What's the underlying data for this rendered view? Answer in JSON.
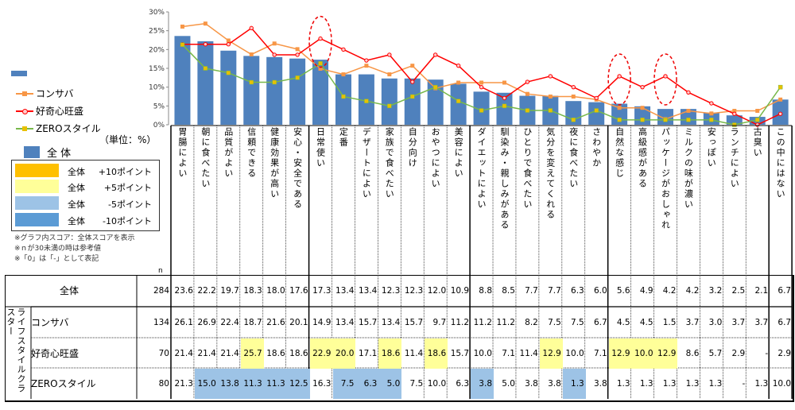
{
  "chart_data": {
    "type": "bar+line",
    "unit_label": "（単位：%）",
    "yaxis": {
      "ticks": [
        "0%",
        "5%",
        "10%",
        "15%",
        "20%",
        "25%",
        "30%"
      ],
      "ylim": [
        0,
        30
      ]
    },
    "categories": [
      "胃腸によい",
      "朝に食べたい",
      "品質がよい",
      "信頼できる",
      "健康効果が高い",
      "安心・安全である",
      "日常使い",
      "定番",
      "デザートによい",
      "家族で食べたい",
      "自分向け",
      "おやつによい",
      "美容によい",
      "ダイエットによい",
      "馴染み・親しみがある",
      "ひとりで食べたい",
      "気分を変えてくれる",
      "夜に食べたい",
      "さわやか",
      "自然な感じ",
      "高級感がある",
      "パッケージがおしゃれ",
      "ミルクの味が濃い",
      "安っぽい",
      "ランチによい",
      "古臭い",
      "この中にはない"
    ],
    "series": [
      {
        "name": "全体",
        "type": "bar",
        "color": "#4f81bd",
        "n": "284",
        "values": [
          "23.6",
          "22.2",
          "19.7",
          "18.3",
          "18.0",
          "17.6",
          "17.3",
          "13.4",
          "13.4",
          "12.3",
          "12.3",
          "12.0",
          "10.9",
          "8.8",
          "8.5",
          "7.7",
          "7.7",
          "6.3",
          "6.0",
          "5.6",
          "4.9",
          "4.2",
          "4.2",
          "3.2",
          "2.5",
          "2.1",
          "6.7"
        ]
      },
      {
        "name": "コンサバ",
        "type": "line",
        "color": "#f79646",
        "n": "134",
        "values": [
          "26.1",
          "26.9",
          "22.4",
          "18.7",
          "21.6",
          "20.1",
          "14.9",
          "13.4",
          "15.7",
          "13.4",
          "15.7",
          "9.7",
          "11.2",
          "11.2",
          "11.2",
          "8.2",
          "7.5",
          "7.5",
          "6.7",
          "4.5",
          "4.5",
          "1.5",
          "3.7",
          "3.0",
          "3.7",
          "3.7",
          "6.7"
        ]
      },
      {
        "name": "好奇心旺盛",
        "type": "line",
        "color": "#ff0000",
        "n": "70",
        "values": [
          "21.4",
          "21.4",
          "21.4",
          "25.7",
          "18.6",
          "18.6",
          "22.9",
          "20.0",
          "17.1",
          "18.6",
          "11.4",
          "18.6",
          "15.7",
          "10.0",
          "7.1",
          "11.4",
          "12.9",
          "10.0",
          "7.1",
          "12.9",
          "10.0",
          "12.9",
          "8.6",
          "5.7",
          "2.9",
          "-",
          "2.9"
        ]
      },
      {
        "name": "ZEROスタイル",
        "type": "line",
        "color": "#77b84a",
        "n": "80",
        "values": [
          "21.3",
          "15.0",
          "13.8",
          "11.3",
          "11.3",
          "12.5",
          "16.3",
          "7.5",
          "6.3",
          "5.0",
          "7.5",
          "10.0",
          "6.3",
          "3.8",
          "5.0",
          "3.8",
          "3.8",
          "1.3",
          "3.8",
          "1.3",
          "1.3",
          "1.3",
          "1.3",
          "1.3",
          "-",
          "1.3",
          "10.0"
        ]
      }
    ],
    "highlights": {
      "好奇心旺盛": [
        3,
        6,
        7,
        9,
        11,
        16,
        19,
        20,
        21
      ],
      "ZEROスタイル": [
        1,
        2,
        3,
        4,
        5,
        7,
        8,
        9,
        13,
        17
      ]
    },
    "circled_categories": [
      6,
      19,
      21
    ]
  },
  "legend": {
    "bar_label": "",
    "total_label": "全 体",
    "items": [
      "コンサバ",
      "好奇心旺盛",
      "ZEROスタイル"
    ]
  },
  "key": [
    {
      "label": "全体",
      "value": "+10ポイント",
      "color": "#ffc000"
    },
    {
      "label": "全体",
      "value": "+5ポイント",
      "color": "#ffff99"
    },
    {
      "label": "全体",
      "value": "-5ポイント",
      "color": "#9dc3e6"
    },
    {
      "label": "全体",
      "value": "-10ポイント",
      "color": "#5b9bd5"
    }
  ],
  "notes": [
    "※グラフ内スコア：全体スコアを表示",
    "※ｎが30未満の時は参考値",
    "※「0」は「-」として表記"
  ],
  "table": {
    "n_header": "n",
    "group_label": "ライフスタイルクラスター",
    "rows": [
      "全体",
      "コンサバ",
      "好奇心旺盛",
      "ZEROスタイル"
    ]
  }
}
